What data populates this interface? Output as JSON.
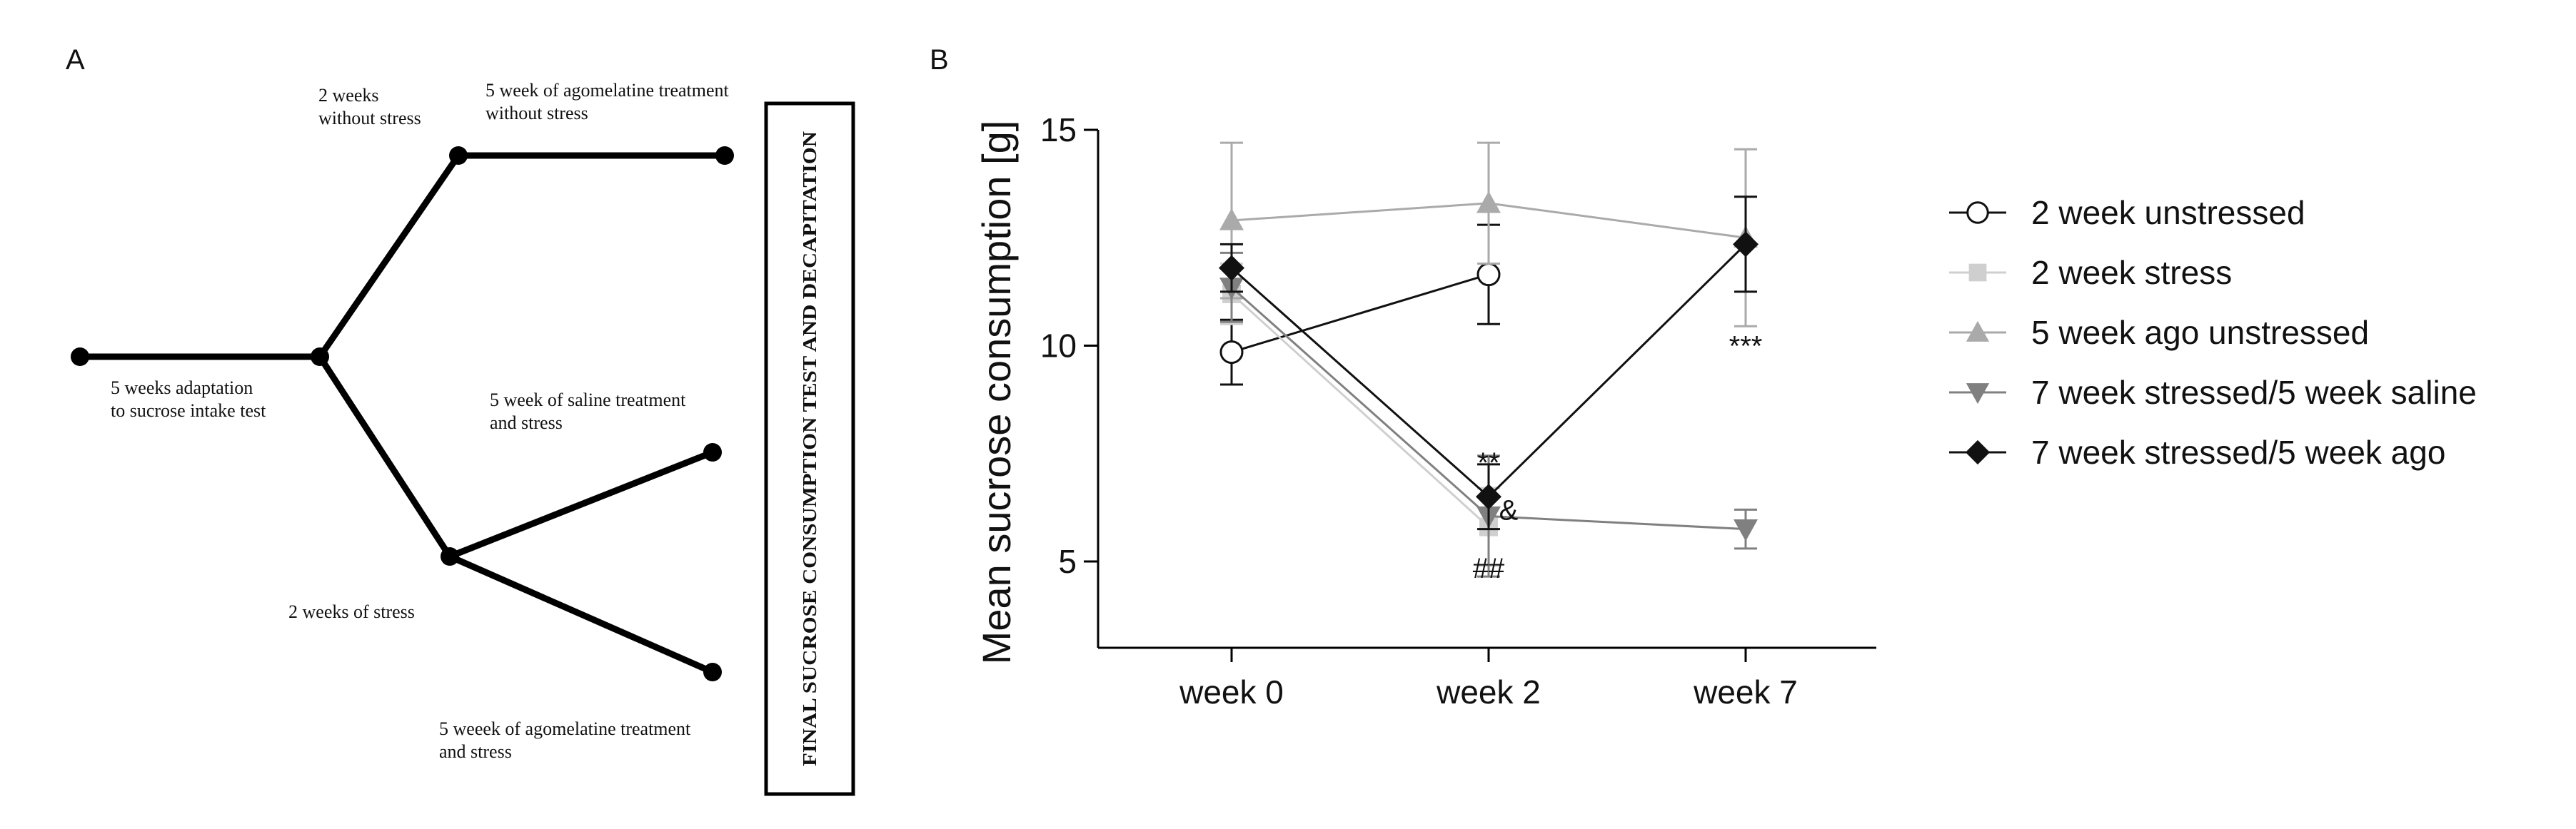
{
  "panel_a": {
    "label": "A",
    "adaptation": [
      "5 weeks adaptation",
      "to sucrose intake test"
    ],
    "no_stress": [
      "2 weeks",
      "without stress"
    ],
    "stress": "2 weeks of stress",
    "agomelatine_unstressed": [
      "5 week of agomelatine treatment",
      "without stress"
    ],
    "saline_stress": [
      "5 week of saline treatment",
      "and stress"
    ],
    "agomelatine_stress": [
      "5 weeek of agomelatine treatment",
      "and stress"
    ],
    "final_box": "FINAL SUCROSE CONSUMPTION TEST AND DECAPITATION"
  },
  "chart_data": {
    "type": "line",
    "panel_label": "B",
    "title": "",
    "xlabel": "",
    "ylabel": "Mean sucrose consumption [g]",
    "categories": [
      "week 0",
      "week 2",
      "week 7"
    ],
    "ylim": [
      3,
      15
    ],
    "yticks": [
      5,
      10,
      15
    ],
    "series": [
      {
        "name": "2 week unstressed",
        "color": "#111111",
        "marker": "circle-open",
        "values": [
          9.85,
          11.65,
          null
        ],
        "errors": [
          0.75,
          1.15,
          null
        ]
      },
      {
        "name": "2 week stress",
        "color": "#cfcfcf",
        "marker": "square",
        "values": [
          11.2,
          5.8,
          null
        ],
        "errors": [
          0.7,
          0.9,
          null
        ]
      },
      {
        "name": "5 week ago unstressed",
        "color": "#aaaaaa",
        "marker": "triangle-up",
        "values": [
          12.9,
          13.3,
          12.5
        ],
        "errors": [
          1.8,
          1.4,
          2.05
        ]
      },
      {
        "name": "7 week stressed/5 week saline",
        "color": "#808080",
        "marker": "triangle-down",
        "values": [
          11.35,
          6.05,
          5.75
        ],
        "errors": [
          0.8,
          1.4,
          0.45
        ]
      },
      {
        "name": "7 week stressed/5 week ago",
        "color": "#111111",
        "marker": "diamond",
        "values": [
          11.8,
          6.5,
          12.35
        ],
        "errors": [
          0.55,
          0.75,
          1.1
        ]
      }
    ],
    "annotations": [
      {
        "text": "**",
        "x": "week 2",
        "y": 7.3
      },
      {
        "text": "&",
        "x": "week 2",
        "y": 6.2
      },
      {
        "text": "##",
        "x": "week 2",
        "y": 4.85
      },
      {
        "text": "***",
        "x": "week 7",
        "y": 10.0
      }
    ]
  }
}
